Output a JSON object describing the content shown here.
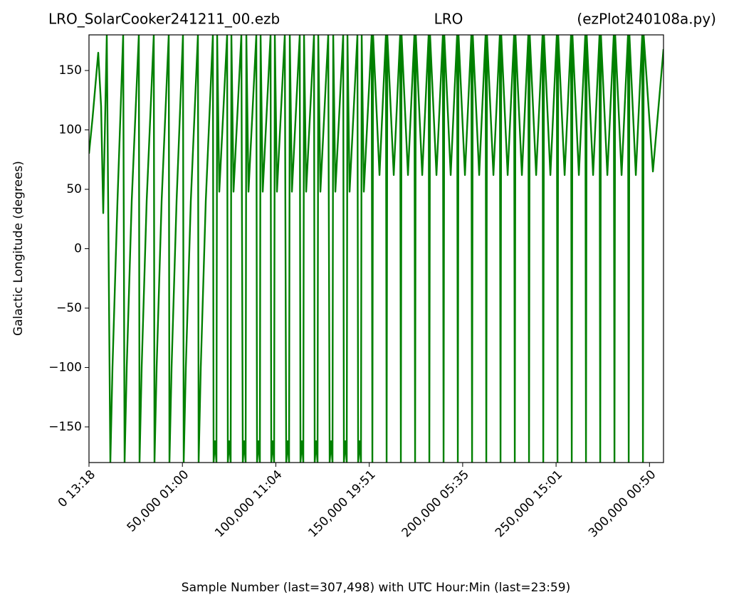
{
  "chart_data": {
    "type": "line",
    "title": [
      "LRO_SolarCooker241211_00.ezb",
      "LRO",
      "(ezPlot240108a.py)"
    ],
    "xlabel": "Sample Number (last=307,498) with UTC Hour:Min (last=23:59)",
    "ylabel": "Galactic Longitude (degrees)",
    "xlim": [
      0,
      307498
    ],
    "ylim": [
      -180,
      180
    ],
    "xticks": [
      {
        "value": 0,
        "label": "0  13:18"
      },
      {
        "value": 50000,
        "label": "50,000  01:00"
      },
      {
        "value": 100000,
        "label": "100,000  11:04"
      },
      {
        "value": 150000,
        "label": "150,000  19:51"
      },
      {
        "value": 200000,
        "label": "200,000  05:35"
      },
      {
        "value": 250000,
        "label": "250,000  15:01"
      },
      {
        "value": 300000,
        "label": "300,000  00:50"
      }
    ],
    "yticks": [
      {
        "value": -150,
        "label": "−150"
      },
      {
        "value": -100,
        "label": "−100"
      },
      {
        "value": -50,
        "label": "−50"
      },
      0,
      50,
      100,
      150
    ],
    "grid": false,
    "series": [
      {
        "color": "#008000",
        "x": [
          0,
          1906,
          4954,
          6479,
          7622,
          9527,
          11433,
          12576,
          15244,
          18293,
          19055,
          20198,
          22866,
          26677,
          27058,
          28201,
          30869,
          34680,
          35061,
          36205,
          38872,
          42683,
          43064,
          44208,
          46875,
          50305,
          50686,
          51830,
          54497,
          58308,
          58689,
          59832,
          62500,
          66311,
          66692,
          67454,
          68216,
          68598,
          69741,
          73933,
          74315,
          75077,
          75839,
          76220,
          77363,
          81555,
          82318,
          83080,
          83842,
          84223,
          85366,
          89559,
          89940,
          90702,
          91464,
          91845,
          92988,
          97181,
          97562,
          98324,
          99086,
          99467,
          100610,
          104803,
          105565,
          106327,
          107089,
          107470,
          108614,
          112806,
          113187,
          113949,
          114711,
          115092,
          116236,
          120428,
          120809,
          121571,
          122333,
          122714,
          123858,
          128050,
          128812,
          129574,
          130337,
          130718,
          131861,
          136053,
          136434,
          137196,
          137958,
          138340,
          139483,
          143675,
          144056,
          144818,
          145580,
          145962,
          147105,
          151297,
          151678,
          152059,
          155489,
          158919,
          159300,
          159681,
          163111,
          166541,
          166922,
          167303,
          170733,
          174163,
          174544,
          174925,
          178355,
          181785,
          182166,
          182547,
          185977,
          189407,
          189788,
          190169,
          193599,
          197029,
          197410,
          197791,
          201221,
          204651,
          205032,
          205413,
          208843,
          212273,
          212654,
          213035,
          216465,
          219895,
          220276,
          220657,
          224087,
          227517,
          227898,
          228279,
          231709,
          235139,
          235520,
          235901,
          239331,
          242761,
          243142,
          243523,
          246953,
          250383,
          250764,
          251145,
          254575,
          258005,
          258386,
          258767,
          262197,
          265627,
          266008,
          266389,
          269819,
          273249,
          273630,
          274011,
          277441,
          280871,
          281252,
          281633,
          285063,
          288493,
          288874,
          289255,
          292685,
          296115,
          296496,
          296877,
          301831,
          307498
        ],
        "values": [
          80,
          110,
          165,
          120,
          30,
          180,
          -180,
          -100,
          40,
          180,
          -180,
          -100,
          40,
          180,
          -180,
          -100,
          40,
          180,
          -180,
          -100,
          40,
          180,
          -180,
          -100,
          40,
          180,
          -180,
          -100,
          40,
          180,
          -180,
          -100,
          40,
          180,
          -180,
          -162,
          -180,
          180,
          48,
          180,
          -180,
          -162,
          -180,
          180,
          48,
          180,
          -180,
          -162,
          -180,
          180,
          48,
          180,
          -180,
          -162,
          -180,
          180,
          48,
          180,
          -180,
          -162,
          -180,
          180,
          48,
          180,
          -180,
          -162,
          -180,
          180,
          48,
          180,
          -180,
          -162,
          -180,
          180,
          48,
          180,
          -180,
          -162,
          -180,
          180,
          48,
          180,
          -180,
          -162,
          -180,
          180,
          48,
          180,
          -180,
          -162,
          -180,
          180,
          48,
          180,
          -180,
          -162,
          -180,
          180,
          48,
          180,
          -180,
          180,
          62,
          180,
          -180,
          180,
          62,
          180,
          -180,
          180,
          62,
          180,
          -180,
          180,
          62,
          180,
          -180,
          180,
          62,
          180,
          -180,
          180,
          62,
          180,
          -180,
          180,
          62,
          180,
          -180,
          180,
          62,
          180,
          -180,
          180,
          62,
          180,
          -180,
          180,
          62,
          180,
          -180,
          180,
          62,
          180,
          -180,
          180,
          62,
          180,
          -180,
          180,
          62,
          180,
          -180,
          180,
          62,
          180,
          -180,
          180,
          62,
          180,
          -180,
          180,
          62,
          180,
          -180,
          180,
          62,
          180,
          -180,
          180,
          62,
          180,
          -180,
          180,
          62,
          180,
          -180,
          180,
          65,
          168
        ]
      }
    ]
  }
}
